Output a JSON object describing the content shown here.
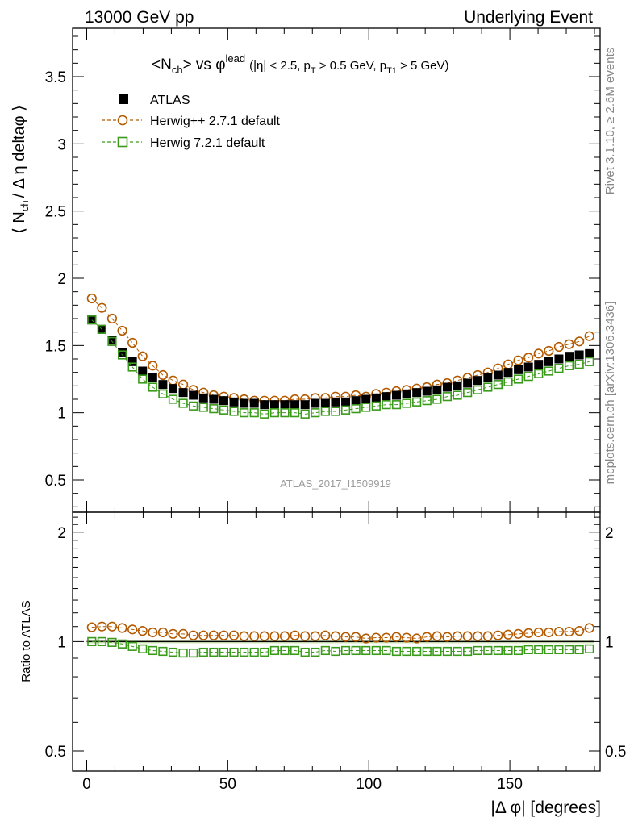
{
  "header": {
    "left": "13000 GeV pp",
    "right": "Underlying Event"
  },
  "side_labels": {
    "rivet": "Rivet 3.1.10, ≥ 2.6M events",
    "mcplots": "mcplots.cern.ch [arXiv:1306.3436]"
  },
  "watermark": "ATLAS_2017_I1509919",
  "chart_data": [
    {
      "type": "scatter",
      "title_parts": {
        "main": "<N",
        "main_sub": "ch",
        "mid": "> vs φ",
        "main_sup": "lead",
        "cond1": "(|η| < 2.5, p",
        "cond1_sub": "T",
        "cond2": " > 0.5 GeV, p",
        "cond2_sub": "T1",
        "cond3": " > 5 GeV)"
      },
      "ylabel_parts": {
        "a": "⟨ N",
        "a_sub": "ch",
        "b": "/ Δ η deltaφ ⟩"
      },
      "xlim": [
        -5,
        182
      ],
      "ylim": [
        0.26,
        3.86
      ],
      "y_ticks": [
        "0.5",
        "1",
        "1.5",
        "2",
        "2.5",
        "3",
        "3.5"
      ],
      "legend_position": "top-left",
      "x": [
        1.8,
        5.4,
        9.0,
        12.6,
        16.2,
        19.8,
        23.4,
        27.0,
        30.6,
        34.2,
        37.8,
        41.4,
        45.0,
        48.6,
        52.2,
        55.8,
        59.4,
        63.0,
        66.6,
        70.2,
        73.8,
        77.4,
        81.0,
        84.6,
        88.2,
        91.8,
        95.4,
        99.0,
        102.6,
        106.2,
        109.8,
        113.4,
        117.0,
        120.6,
        124.2,
        127.8,
        131.4,
        135.0,
        138.6,
        142.2,
        145.8,
        149.4,
        153.0,
        156.6,
        160.2,
        163.8,
        167.4,
        171.0,
        174.6,
        178.2
      ],
      "series": [
        {
          "name": "ATLAS",
          "color": "#000000",
          "marker": "filled-square",
          "values": [
            1.69,
            1.62,
            1.54,
            1.45,
            1.38,
            1.31,
            1.26,
            1.21,
            1.18,
            1.15,
            1.13,
            1.11,
            1.1,
            1.09,
            1.08,
            1.07,
            1.07,
            1.06,
            1.06,
            1.06,
            1.06,
            1.06,
            1.07,
            1.07,
            1.08,
            1.08,
            1.09,
            1.1,
            1.11,
            1.12,
            1.13,
            1.14,
            1.15,
            1.16,
            1.17,
            1.19,
            1.2,
            1.22,
            1.24,
            1.26,
            1.28,
            1.3,
            1.32,
            1.34,
            1.36,
            1.38,
            1.4,
            1.42,
            1.43,
            1.44
          ]
        },
        {
          "name": "Herwig++ 2.7.1 default",
          "color": "#b35a00",
          "marker": "open-circle",
          "values": [
            1.85,
            1.78,
            1.7,
            1.61,
            1.52,
            1.42,
            1.35,
            1.28,
            1.24,
            1.21,
            1.17,
            1.15,
            1.13,
            1.12,
            1.11,
            1.1,
            1.09,
            1.09,
            1.09,
            1.09,
            1.1,
            1.1,
            1.11,
            1.11,
            1.12,
            1.12,
            1.13,
            1.12,
            1.14,
            1.15,
            1.16,
            1.17,
            1.18,
            1.19,
            1.21,
            1.22,
            1.24,
            1.26,
            1.28,
            1.3,
            1.33,
            1.36,
            1.39,
            1.41,
            1.44,
            1.46,
            1.49,
            1.51,
            1.53,
            1.57
          ]
        },
        {
          "name": "Herwig 7.2.1 default",
          "color": "#3a9a1a",
          "marker": "open-square",
          "values": [
            1.69,
            1.62,
            1.53,
            1.43,
            1.34,
            1.25,
            1.19,
            1.14,
            1.1,
            1.07,
            1.05,
            1.04,
            1.03,
            1.02,
            1.01,
            1.0,
            1.0,
            0.99,
            1.0,
            1.0,
            1.0,
            0.99,
            1.0,
            1.01,
            1.01,
            1.02,
            1.03,
            1.04,
            1.05,
            1.06,
            1.06,
            1.07,
            1.08,
            1.09,
            1.1,
            1.12,
            1.13,
            1.15,
            1.17,
            1.19,
            1.21,
            1.23,
            1.25,
            1.27,
            1.29,
            1.31,
            1.33,
            1.35,
            1.36,
            1.38
          ]
        }
      ]
    },
    {
      "type": "scatter",
      "ylabel": "Ratio to ATLAS",
      "xlabel_parts": {
        "a": "|Δ φ|",
        "b": " [degrees]"
      },
      "xlim": [
        -5,
        182
      ],
      "ylim": [
        0.44,
        2.27
      ],
      "log_y": true,
      "x_ticks": [
        "0",
        "50",
        "100",
        "150"
      ],
      "y_ticks": [
        "0.5",
        "1",
        "2"
      ],
      "reference_line": 1,
      "series": [
        {
          "name": "Herwig++ 2.7.1 default",
          "color": "#b35a00",
          "marker": "open-circle",
          "values": [
            1.095,
            1.1,
            1.1,
            1.09,
            1.08,
            1.07,
            1.06,
            1.06,
            1.05,
            1.05,
            1.04,
            1.04,
            1.04,
            1.04,
            1.04,
            1.035,
            1.035,
            1.035,
            1.035,
            1.035,
            1.04,
            1.035,
            1.035,
            1.04,
            1.035,
            1.03,
            1.03,
            1.02,
            1.025,
            1.025,
            1.03,
            1.025,
            1.02,
            1.03,
            1.035,
            1.03,
            1.035,
            1.035,
            1.035,
            1.035,
            1.04,
            1.045,
            1.05,
            1.055,
            1.06,
            1.06,
            1.065,
            1.065,
            1.07,
            1.09
          ]
        },
        {
          "name": "Herwig 7.2.1 default",
          "color": "#3a9a1a",
          "marker": "open-square",
          "values": [
            1.0,
            1.0,
            0.995,
            0.985,
            0.97,
            0.955,
            0.945,
            0.94,
            0.935,
            0.93,
            0.93,
            0.935,
            0.935,
            0.935,
            0.935,
            0.935,
            0.935,
            0.935,
            0.945,
            0.945,
            0.945,
            0.935,
            0.935,
            0.945,
            0.94,
            0.945,
            0.945,
            0.945,
            0.945,
            0.945,
            0.94,
            0.94,
            0.94,
            0.94,
            0.94,
            0.94,
            0.94,
            0.94,
            0.945,
            0.945,
            0.945,
            0.945,
            0.945,
            0.95,
            0.95,
            0.95,
            0.95,
            0.95,
            0.95,
            0.955
          ]
        }
      ]
    }
  ]
}
